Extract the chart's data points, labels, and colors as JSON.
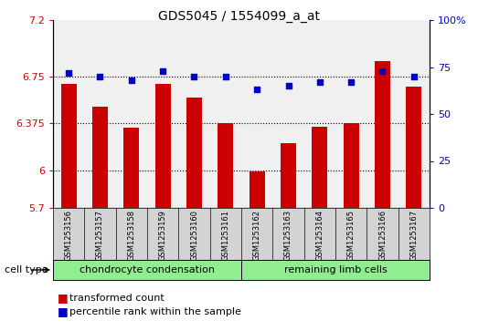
{
  "title": "GDS5045 / 1554099_a_at",
  "samples": [
    "GSM1253156",
    "GSM1253157",
    "GSM1253158",
    "GSM1253159",
    "GSM1253160",
    "GSM1253161",
    "GSM1253162",
    "GSM1253163",
    "GSM1253164",
    "GSM1253165",
    "GSM1253166",
    "GSM1253167"
  ],
  "transformed_count": [
    6.69,
    6.51,
    6.34,
    6.69,
    6.58,
    6.38,
    5.99,
    6.22,
    6.35,
    6.38,
    6.87,
    6.67
  ],
  "percentile_rank": [
    72,
    70,
    68,
    73,
    70,
    70,
    63,
    65,
    67,
    67,
    73,
    70
  ],
  "ylim_left": [
    5.7,
    7.2
  ],
  "ylim_right": [
    0,
    100
  ],
  "yticks_left": [
    5.7,
    6.0,
    6.375,
    6.75,
    7.2
  ],
  "yticks_left_labels": [
    "5.7",
    "6",
    "6.375",
    "6.75",
    "7.2"
  ],
  "yticks_right": [
    0,
    25,
    50,
    75,
    100
  ],
  "yticks_right_labels": [
    "0",
    "25",
    "50",
    "75",
    "100%"
  ],
  "hlines": [
    6.0,
    6.375,
    6.75
  ],
  "bar_color": "#cc0000",
  "dot_color": "#0000cc",
  "bar_bottom": 5.7,
  "group1_label": "chondrocyte condensation",
  "group2_label": "remaining limb cells",
  "group_color": "#90ee90",
  "cell_type_label": "cell type",
  "legend_bar_label": "transformed count",
  "legend_dot_label": "percentile rank within the sample",
  "axis_color_left": "#cc0000",
  "axis_color_right": "#0000cc",
  "plot_bg_color": "#f0f0f0",
  "sample_box_color": "#d3d3d3",
  "title_fontsize": 10,
  "tick_fontsize": 8,
  "label_fontsize": 8,
  "legend_fontsize": 8
}
